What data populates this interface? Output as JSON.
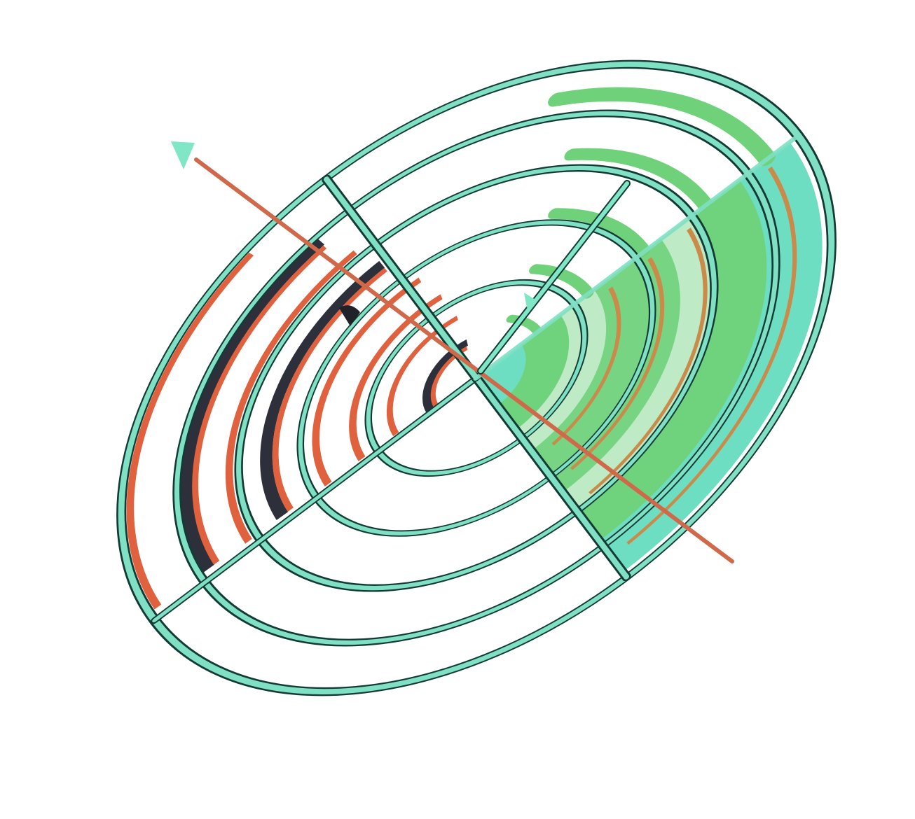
{
  "colors": {
    "background": "#ffffff",
    "frame_fill": "#7fe0c3",
    "frame_outline": "#143a35",
    "orange_arc": "#e0613e",
    "orange_muted": "#c98a4a",
    "dark_arc": "#2d2f3a",
    "green_band": "#6fd27a",
    "teal_band": "#66dcc0",
    "axis_orange": "#d0694a",
    "axis_teal": "#7fe6c6"
  },
  "icons": [
    "radial-target-icon",
    "arrowhead-icon"
  ],
  "rings": 5,
  "segments": 4
}
